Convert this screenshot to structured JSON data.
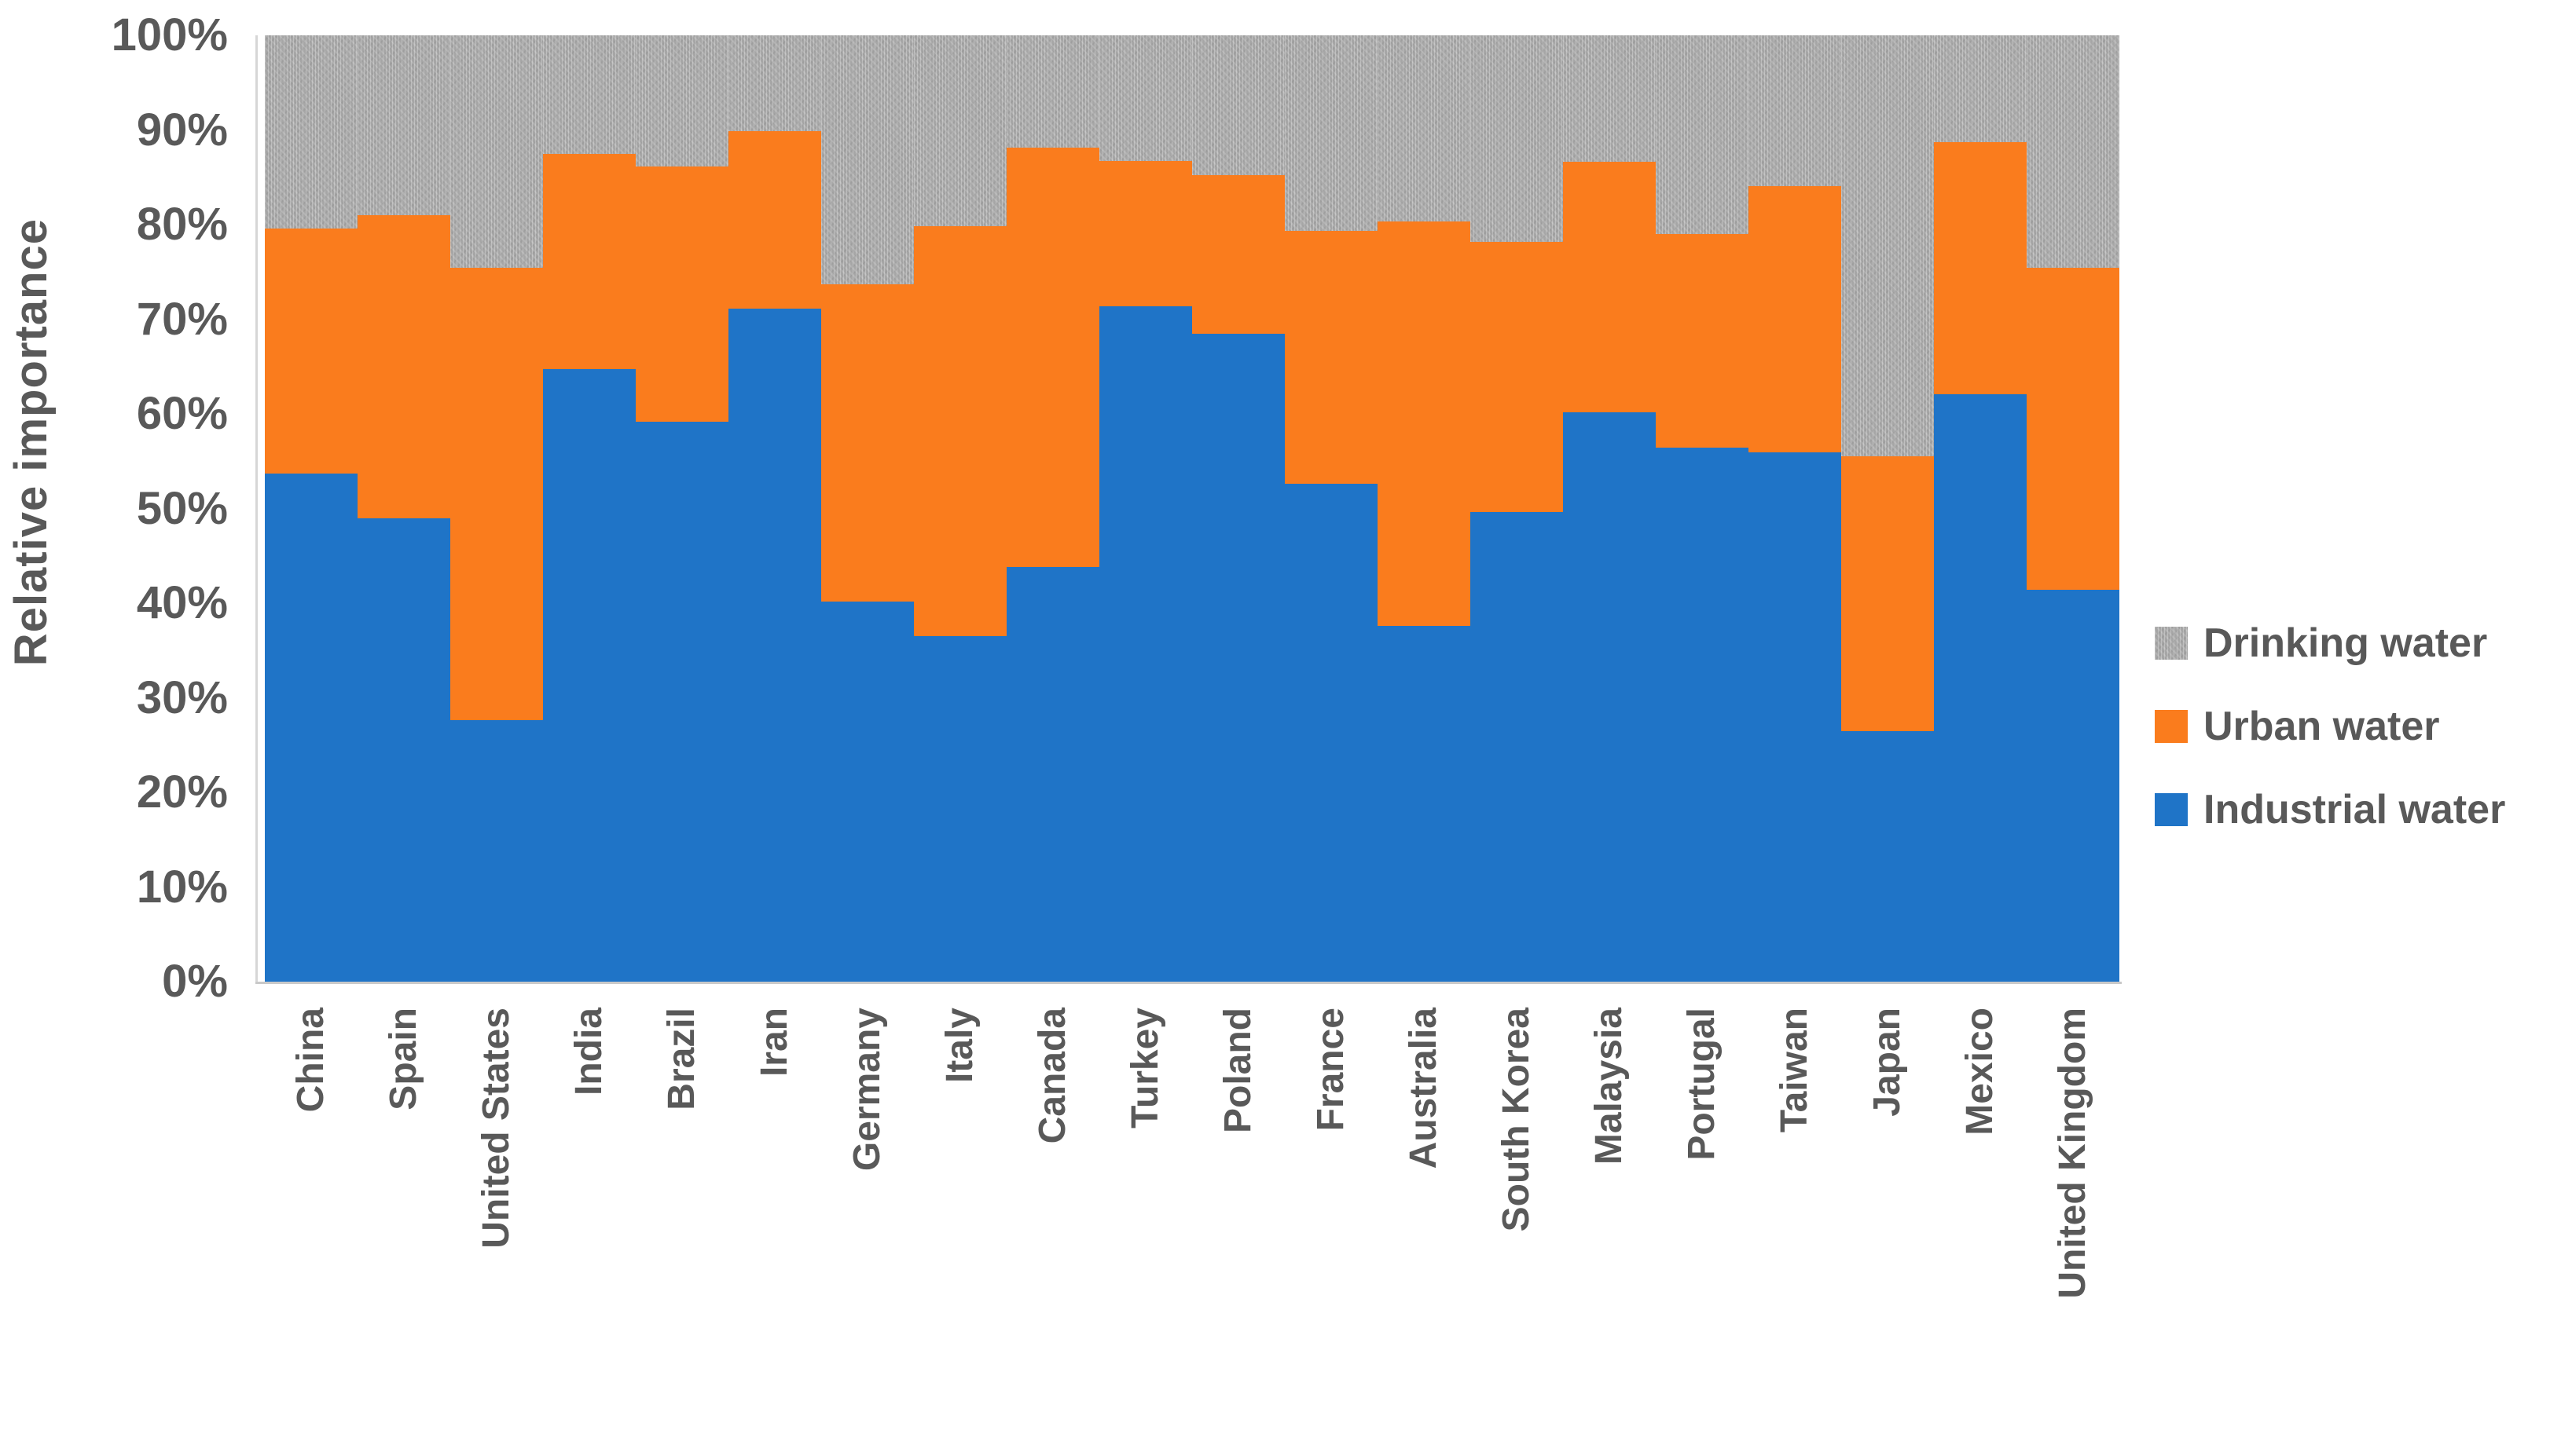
{
  "chart_data": {
    "type": "bar",
    "stacked": true,
    "percent_stacked": true,
    "title": "",
    "xlabel": "",
    "ylabel": "Relative importance",
    "ylim": [
      0,
      100
    ],
    "grid": false,
    "legend_position": "right",
    "y_ticks": [
      "0%",
      "10%",
      "20%",
      "30%",
      "40%",
      "50%",
      "60%",
      "70%",
      "80%",
      "90%",
      "100%"
    ],
    "y_tick_values": [
      0,
      10,
      20,
      30,
      40,
      50,
      60,
      70,
      80,
      90,
      100
    ],
    "categories": [
      "China",
      "Spain",
      "United States",
      "India",
      "Brazil",
      "Iran",
      "Germany",
      "Italy",
      "Canada",
      "Turkey",
      "Poland",
      "France",
      "Australia",
      "South Korea",
      "Malaysia",
      "Portugal",
      "Taiwan",
      "Japan",
      "Mexico",
      "United Kingdom"
    ],
    "series": [
      {
        "name": "Industrial water",
        "color": "#1F74C7",
        "values": [
          53.7,
          49.0,
          27.6,
          64.7,
          59.2,
          71.1,
          40.2,
          36.5,
          43.8,
          71.4,
          68.5,
          52.6,
          37.6,
          49.6,
          60.2,
          56.4,
          55.9,
          26.5,
          62.1,
          41.4
        ]
      },
      {
        "name": "Urban water",
        "color": "#FA7C1D",
        "values": [
          25.9,
          32.0,
          47.8,
          22.8,
          26.9,
          18.8,
          33.5,
          43.3,
          44.3,
          15.3,
          16.7,
          26.7,
          42.7,
          28.6,
          26.4,
          22.6,
          28.2,
          29.0,
          26.6,
          34.0
        ]
      },
      {
        "name": "Drinking water",
        "color": "#A6A6A6",
        "values": [
          20.4,
          19.0,
          24.6,
          12.5,
          13.9,
          10.1,
          26.3,
          20.2,
          11.9,
          13.3,
          14.8,
          20.7,
          19.7,
          21.8,
          13.4,
          21.0,
          15.9,
          44.5,
          11.3,
          24.6
        ]
      }
    ]
  },
  "legend": {
    "items": [
      {
        "label": "Drinking water",
        "color": "#A6A6A6",
        "textured": true
      },
      {
        "label": "Urban water",
        "color": "#FA7C1D",
        "textured": false
      },
      {
        "label": "Industrial water",
        "color": "#1F74C7",
        "textured": false
      }
    ]
  },
  "colors": {
    "industrial": "#1F74C7",
    "urban": "#FA7C1D",
    "drinking": "#A6A6A6",
    "label_text": "#595959",
    "axis_line": "#C9C9C9"
  }
}
